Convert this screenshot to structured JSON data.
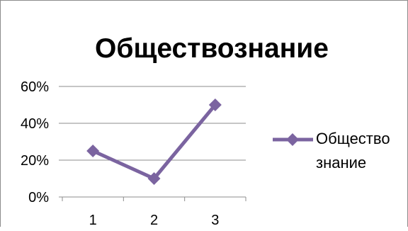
{
  "chart_data": {
    "type": "line",
    "title": "Обществознание",
    "categories": [
      "1",
      "2",
      "3"
    ],
    "series": [
      {
        "name": "Общество знание",
        "name_lines": [
          "Общество",
          "знание"
        ],
        "values": [
          0.25,
          0.1,
          0.5
        ],
        "color": "#7b64a0",
        "marker": "diamond"
      }
    ],
    "y_ticks": [
      "0%",
      "20%",
      "40%",
      "60%"
    ],
    "ylim": [
      0,
      0.6
    ],
    "y_format": "percent",
    "grid": true,
    "legend_position": "right"
  }
}
